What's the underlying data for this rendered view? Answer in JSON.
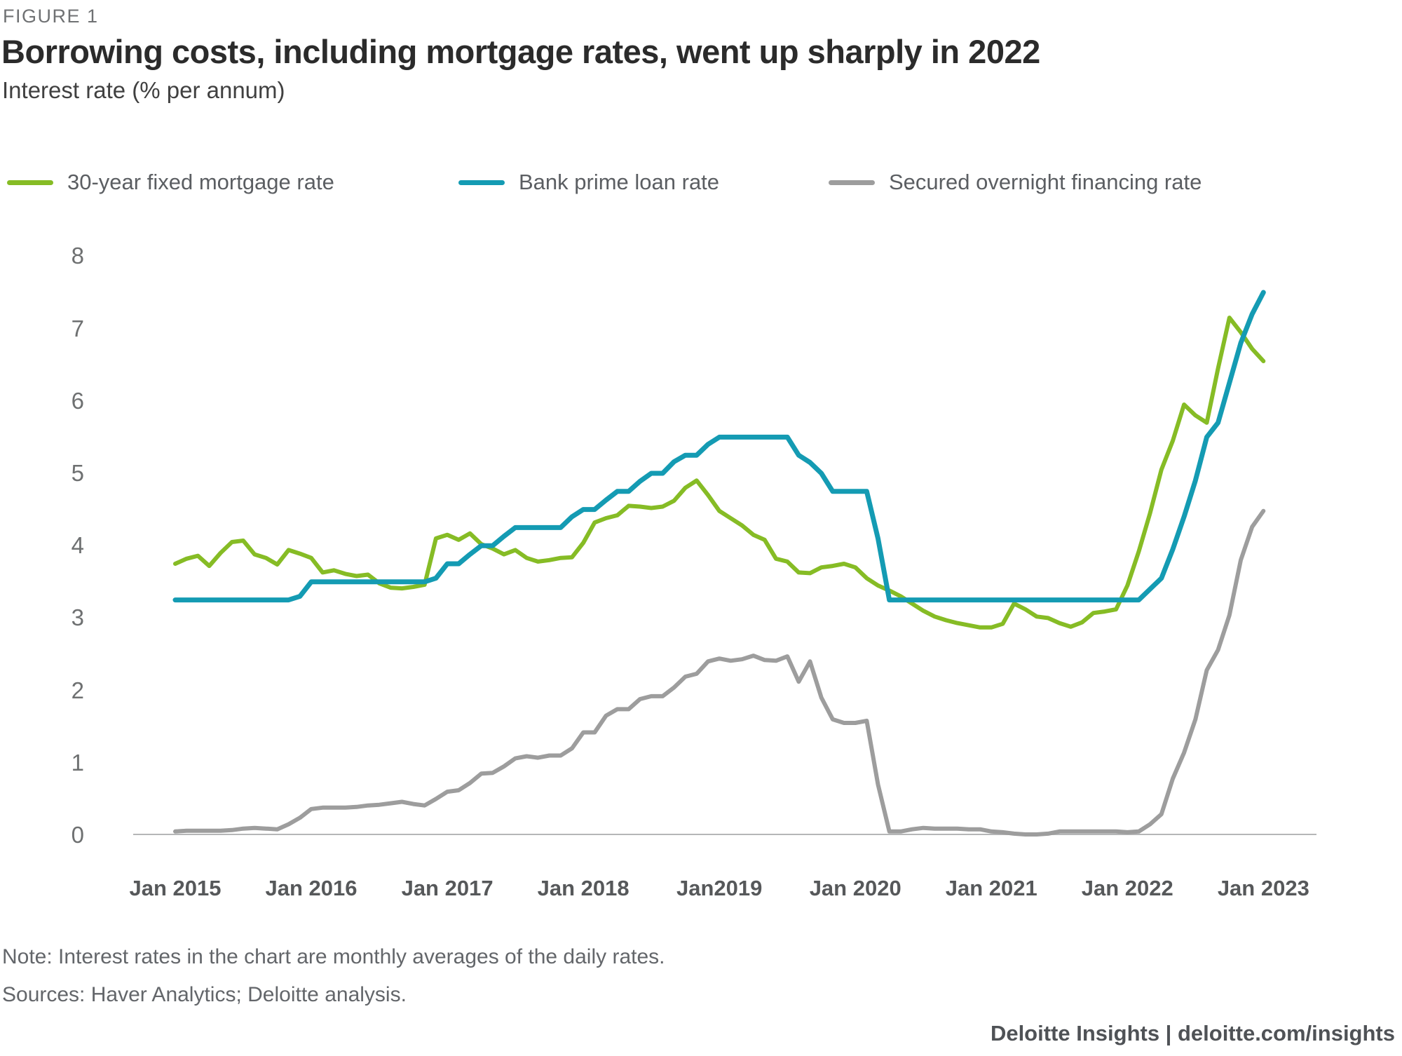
{
  "figure_label": "FIGURE 1",
  "title": "Borrowing costs, including mortgage rates, went up sharply in 2022",
  "subtitle": "Interest rate (% per annum)",
  "legend": [
    {
      "label": "30-year fixed mortgage rate",
      "color": "#86BC25"
    },
    {
      "label": "Bank prime loan rate",
      "color": "#149BB3"
    },
    {
      "label": "Secured overnight financing rate",
      "color": "#9D9D9D"
    }
  ],
  "note": "Note: Interest rates in the chart are monthly averages of the daily rates.",
  "sources": "Sources: Haver Analytics; Deloitte analysis.",
  "footer": "Deloitte Insights | deloitte.com/insights",
  "colors": {
    "mortgage_green": "#86BC25",
    "prime_teal": "#149BB3",
    "sofr_gray": "#9D9D9D",
    "axis_line": "#b5b6b7"
  },
  "chart_data": {
    "type": "line",
    "title": "Borrowing costs, including mortgage rates, went up sharply in 2022",
    "ylabel": "Interest rate (% per annum)",
    "xlabel": "",
    "grid": false,
    "legend_position": "top",
    "ylim": [
      0,
      8.35
    ],
    "y_ticks": [
      0,
      1,
      2,
      3,
      4,
      5,
      6,
      7,
      8
    ],
    "x_unit": "month",
    "x_tick_labels": [
      "Jan 2015",
      "Jan 2016",
      "Jan 2017",
      "Jan 2018",
      "Jan2019",
      "Jan 2020",
      "Jan 2021",
      "Jan 2022",
      "Jan 2023"
    ],
    "x": [
      "2015-01",
      "2015-02",
      "2015-03",
      "2015-04",
      "2015-05",
      "2015-06",
      "2015-07",
      "2015-08",
      "2015-09",
      "2015-10",
      "2015-11",
      "2015-12",
      "2016-01",
      "2016-02",
      "2016-03",
      "2016-04",
      "2016-05",
      "2016-06",
      "2016-07",
      "2016-08",
      "2016-09",
      "2016-10",
      "2016-11",
      "2016-12",
      "2017-01",
      "2017-02",
      "2017-03",
      "2017-04",
      "2017-05",
      "2017-06",
      "2017-07",
      "2017-08",
      "2017-09",
      "2017-10",
      "2017-11",
      "2017-12",
      "2018-01",
      "2018-02",
      "2018-03",
      "2018-04",
      "2018-05",
      "2018-06",
      "2018-07",
      "2018-08",
      "2018-09",
      "2018-10",
      "2018-11",
      "2018-12",
      "2019-01",
      "2019-02",
      "2019-03",
      "2019-04",
      "2019-05",
      "2019-06",
      "2019-07",
      "2019-08",
      "2019-09",
      "2019-10",
      "2019-11",
      "2019-12",
      "2020-01",
      "2020-02",
      "2020-03",
      "2020-04",
      "2020-05",
      "2020-06",
      "2020-07",
      "2020-08",
      "2020-09",
      "2020-10",
      "2020-11",
      "2020-12",
      "2021-01",
      "2021-02",
      "2021-03",
      "2021-04",
      "2021-05",
      "2021-06",
      "2021-07",
      "2021-08",
      "2021-09",
      "2021-10",
      "2021-11",
      "2021-12",
      "2022-01",
      "2022-02",
      "2022-03",
      "2022-04",
      "2022-05",
      "2022-06",
      "2022-07",
      "2022-08",
      "2022-09",
      "2022-10",
      "2022-11",
      "2022-12",
      "2023-01"
    ],
    "series": [
      {
        "id": "sofr",
        "name": "Secured overnight financing rate",
        "color": "#9D9D9D",
        "stroke_width": 6,
        "values": [
          0.05,
          0.06,
          0.06,
          0.06,
          0.06,
          0.07,
          0.09,
          0.1,
          0.09,
          0.08,
          0.15,
          0.24,
          0.36,
          0.38,
          0.38,
          0.38,
          0.39,
          0.41,
          0.42,
          0.44,
          0.46,
          0.43,
          0.41,
          0.5,
          0.6,
          0.62,
          0.72,
          0.85,
          0.86,
          0.95,
          1.06,
          1.09,
          1.07,
          1.1,
          1.1,
          1.2,
          1.42,
          1.42,
          1.65,
          1.74,
          1.74,
          1.88,
          1.92,
          1.92,
          2.04,
          2.19,
          2.23,
          2.4,
          2.44,
          2.41,
          2.43,
          2.48,
          2.42,
          2.41,
          2.47,
          2.12,
          2.4,
          1.9,
          1.6,
          1.55,
          1.55,
          1.58,
          0.7,
          0.05,
          0.05,
          0.08,
          0.1,
          0.09,
          0.09,
          0.09,
          0.08,
          0.08,
          0.05,
          0.04,
          0.02,
          0.01,
          0.01,
          0.02,
          0.05,
          0.05,
          0.05,
          0.05,
          0.05,
          0.05,
          0.04,
          0.05,
          0.15,
          0.29,
          0.78,
          1.14,
          1.6,
          2.28,
          2.56,
          3.04,
          3.8,
          4.26,
          4.48
        ]
      },
      {
        "id": "mortgage",
        "name": "30-year fixed mortgage rate",
        "color": "#86BC25",
        "stroke_width": 6,
        "values": [
          3.75,
          3.82,
          3.86,
          3.72,
          3.9,
          4.05,
          4.07,
          3.88,
          3.83,
          3.74,
          3.94,
          3.89,
          3.83,
          3.63,
          3.66,
          3.61,
          3.58,
          3.6,
          3.48,
          3.42,
          3.41,
          3.43,
          3.46,
          4.1,
          4.15,
          4.08,
          4.17,
          4.02,
          3.96,
          3.88,
          3.94,
          3.83,
          3.78,
          3.8,
          3.83,
          3.84,
          4.04,
          4.32,
          4.38,
          4.42,
          4.55,
          4.54,
          4.52,
          4.54,
          4.62,
          4.8,
          4.9,
          4.7,
          4.48,
          4.38,
          4.28,
          4.15,
          4.08,
          3.82,
          3.78,
          3.63,
          3.62,
          3.7,
          3.72,
          3.75,
          3.7,
          3.55,
          3.45,
          3.38,
          3.3,
          3.2,
          3.1,
          3.02,
          2.97,
          2.93,
          2.9,
          2.87,
          2.87,
          2.92,
          3.2,
          3.12,
          3.02,
          3.0,
          2.93,
          2.88,
          2.94,
          3.07,
          3.09,
          3.12,
          3.45,
          3.92,
          4.45,
          5.05,
          5.45,
          5.95,
          5.8,
          5.7,
          6.45,
          7.15,
          6.95,
          6.72,
          6.55
        ]
      },
      {
        "id": "prime",
        "name": "Bank prime loan rate",
        "color": "#149BB3",
        "stroke_width": 7,
        "values": [
          3.25,
          3.25,
          3.25,
          3.25,
          3.25,
          3.25,
          3.25,
          3.25,
          3.25,
          3.25,
          3.25,
          3.3,
          3.5,
          3.5,
          3.5,
          3.5,
          3.5,
          3.5,
          3.5,
          3.5,
          3.5,
          3.5,
          3.5,
          3.55,
          3.75,
          3.75,
          3.88,
          4.0,
          4.0,
          4.13,
          4.25,
          4.25,
          4.25,
          4.25,
          4.25,
          4.4,
          4.5,
          4.5,
          4.63,
          4.75,
          4.75,
          4.89,
          5.0,
          5.0,
          5.16,
          5.25,
          5.25,
          5.4,
          5.5,
          5.5,
          5.5,
          5.5,
          5.5,
          5.5,
          5.5,
          5.25,
          5.15,
          5.0,
          4.75,
          4.75,
          4.75,
          4.75,
          4.1,
          3.25,
          3.25,
          3.25,
          3.25,
          3.25,
          3.25,
          3.25,
          3.25,
          3.25,
          3.25,
          3.25,
          3.25,
          3.25,
          3.25,
          3.25,
          3.25,
          3.25,
          3.25,
          3.25,
          3.25,
          3.25,
          3.25,
          3.25,
          3.4,
          3.55,
          3.95,
          4.4,
          4.9,
          5.5,
          5.7,
          6.25,
          6.8,
          7.2,
          7.5
        ]
      }
    ]
  }
}
